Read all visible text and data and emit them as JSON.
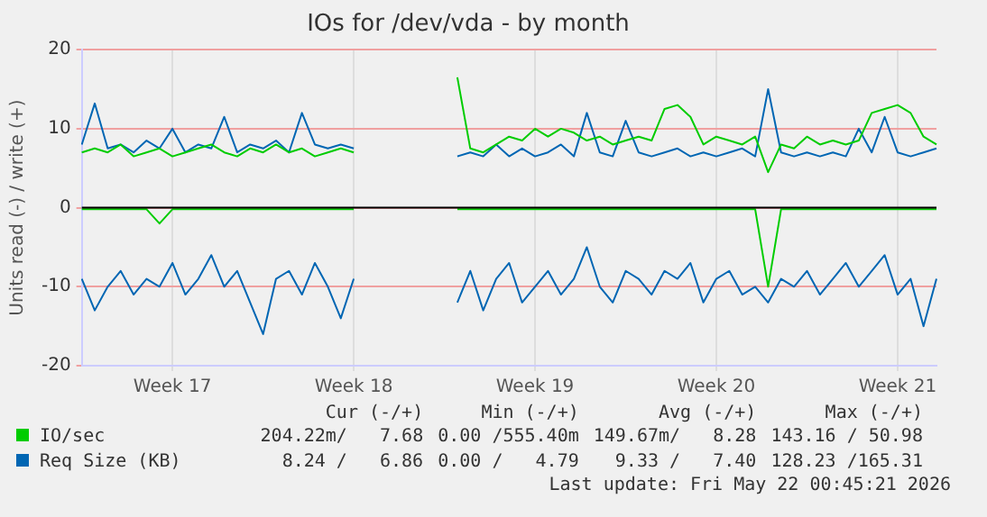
{
  "chart_data": {
    "type": "line",
    "title": "IOs for /dev/vda - by month",
    "ylabel": "Units read (-) / write (+)",
    "categories": [
      null,
      null,
      null,
      null,
      null,
      null,
      null,
      "Week 17",
      null,
      null,
      null,
      null,
      null,
      null,
      null,
      null,
      null,
      null,
      null,
      null,
      null,
      "Week 18",
      null,
      null,
      null,
      null,
      null,
      null,
      null,
      null,
      null,
      null,
      null,
      null,
      null,
      "Week 19",
      null,
      null,
      null,
      null,
      null,
      null,
      null,
      null,
      null,
      null,
      null,
      null,
      null,
      "Week 20",
      null,
      null,
      null,
      null,
      null,
      null,
      null,
      null,
      null,
      null,
      null,
      null,
      null,
      "Week 21",
      null,
      null,
      null
    ],
    "series": [
      {
        "name": "IO/sec",
        "color": "#00cc00",
        "values": [
          7,
          7.5,
          7,
          8,
          6.5,
          7,
          7.5,
          6.5,
          7,
          7.5,
          8,
          7,
          6.5,
          7.5,
          7,
          8,
          7,
          7.5,
          6.5,
          7,
          7.5,
          7,
          null,
          null,
          null,
          null,
          null,
          null,
          null,
          16.5,
          7.5,
          7,
          8,
          9,
          8.5,
          10,
          9,
          10,
          9.5,
          8.5,
          9,
          8,
          8.5,
          9,
          8.5,
          12.5,
          13,
          11.5,
          8,
          9,
          8.5,
          8,
          9,
          4.5,
          8,
          7.5,
          9,
          8,
          8.5,
          8,
          8.5,
          12,
          12.5,
          13,
          12,
          9,
          8
        ]
      },
      {
        "color": "#00cc00",
        "values": [
          -0.2,
          -0.2,
          -0.2,
          -0.2,
          -0.2,
          -0.2,
          -2,
          -0.2,
          -0.2,
          -0.2,
          -0.2,
          -0.2,
          -0.2,
          -0.2,
          -0.2,
          -0.2,
          -0.2,
          -0.2,
          -0.2,
          -0.2,
          -0.2,
          -0.2,
          null,
          null,
          null,
          null,
          null,
          null,
          null,
          -0.2,
          -0.2,
          -0.2,
          -0.2,
          -0.2,
          -0.2,
          -0.2,
          -0.2,
          -0.2,
          -0.2,
          -0.2,
          -0.2,
          -0.2,
          -0.2,
          -0.2,
          -0.2,
          -0.2,
          -0.2,
          -0.2,
          -0.2,
          -0.2,
          -0.2,
          -0.2,
          -0.2,
          -10,
          -0.2,
          -0.2,
          -0.2,
          -0.2,
          -0.2,
          -0.2,
          -0.2,
          -0.2,
          -0.2,
          -0.2,
          -0.2,
          -0.2,
          -0.2
        ]
      },
      {
        "name": "Req Size (KB)",
        "color": "#0066b3",
        "values": [
          8,
          13.2,
          7.5,
          8,
          7,
          8.5,
          7.5,
          10,
          7,
          8,
          7.5,
          11.5,
          7,
          8,
          7.5,
          8.5,
          7,
          12,
          8,
          7.5,
          8,
          7.5,
          null,
          null,
          null,
          null,
          null,
          null,
          null,
          6.5,
          7,
          6.5,
          8,
          6.5,
          7.5,
          6.5,
          7,
          8,
          6.5,
          12,
          7,
          6.5,
          11,
          7,
          6.5,
          7,
          7.5,
          6.5,
          7,
          6.5,
          7,
          7.5,
          6.5,
          15,
          7,
          6.5,
          7,
          6.5,
          7,
          6.5,
          10,
          7,
          11.5,
          7,
          6.5,
          7,
          7.5
        ]
      },
      {
        "color": "#0066b3",
        "values": [
          -9,
          -13,
          -10,
          -8,
          -11,
          -9,
          -10,
          -7,
          -11,
          -9,
          -6,
          -10,
          -8,
          -12,
          -16,
          -9,
          -8,
          -11,
          -7,
          -10,
          -14,
          -9,
          null,
          null,
          null,
          null,
          null,
          null,
          null,
          -12,
          -8,
          -13,
          -9,
          -7,
          -12,
          -10,
          -8,
          -11,
          -9,
          -5,
          -10,
          -12,
          -8,
          -9,
          -11,
          -8,
          -9,
          -7,
          -12,
          -9,
          -8,
          -11,
          -10,
          -12,
          -9,
          -10,
          -8,
          -11,
          -9,
          -7,
          -10,
          -8,
          -6,
          -11,
          -9,
          -15,
          -9
        ]
      }
    ],
    "ylim": [
      -20,
      20
    ],
    "yticks": [
      -20,
      -10,
      0,
      10,
      20
    ],
    "ref_lines": [
      {
        "axis": "y",
        "value": 0,
        "color": "#000000"
      }
    ],
    "grid": true,
    "legend": "bottom",
    "annotations": [
      "Cur (-/+)",
      "Min (-/+)",
      "Avg (-/+)",
      "Max (-/+)",
      "204.22m/   7.68",
      "0.00 /555.40m",
      "149.67m/   8.28",
      "143.16 / 50.98",
      "8.24 /   6.86",
      "0.00 /   4.79",
      "9.33 /   7.40",
      "128.23 /165.31",
      "Last update: Fri May 22 00:45:21 2026"
    ]
  }
}
